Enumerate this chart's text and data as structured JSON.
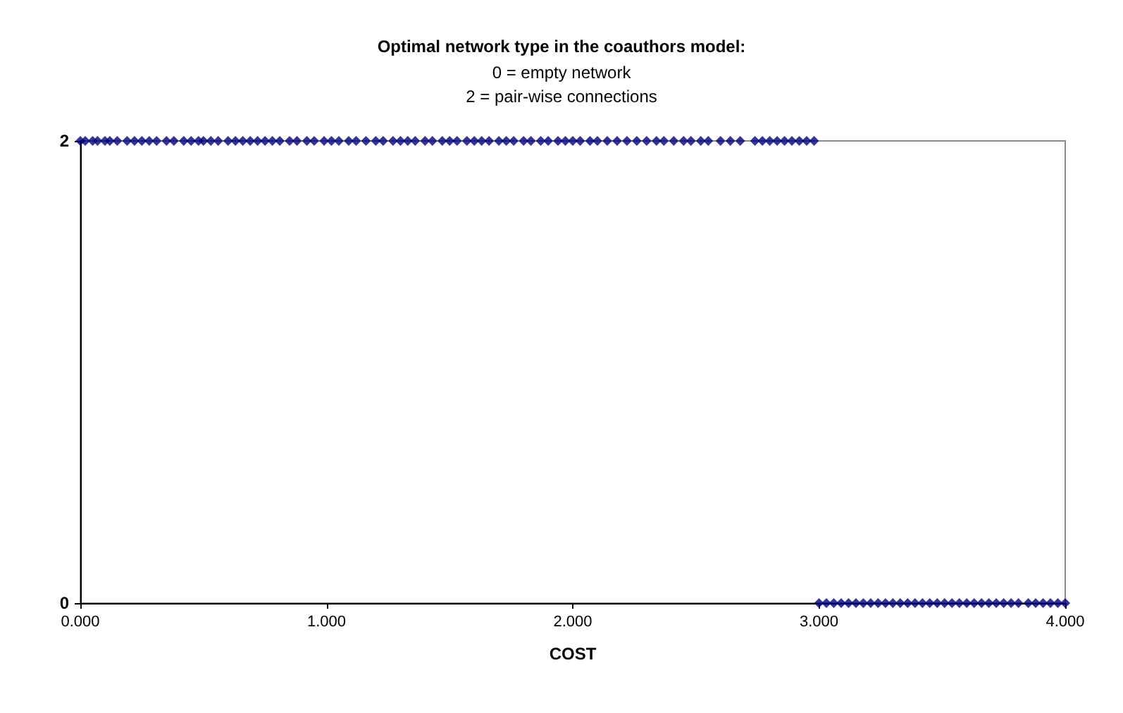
{
  "chart_data": {
    "type": "scatter",
    "title": "Optimal network type in the coauthors model:",
    "subtitle": "0 = empty network\n2 = pair-wise connections",
    "xlabel": "COST",
    "series": [
      {
        "color": "#000080",
        "x": [
          0.0,
          0.02,
          0.05,
          0.07,
          0.1,
          0.12,
          0.15,
          0.19,
          0.22,
          0.25,
          0.28,
          0.31,
          0.35,
          0.38,
          0.42,
          0.45,
          0.48,
          0.5,
          0.53,
          0.56,
          0.6,
          0.63,
          0.66,
          0.69,
          0.72,
          0.75,
          0.78,
          0.81,
          0.85,
          0.88,
          0.92,
          0.95,
          0.99,
          1.02,
          1.05,
          1.09,
          1.12,
          1.16,
          1.2,
          1.23,
          1.27,
          1.3,
          1.33,
          1.36,
          1.4,
          1.43,
          1.47,
          1.5,
          1.53,
          1.57,
          1.6,
          1.63,
          1.66,
          1.7,
          1.73,
          1.76,
          1.8,
          1.83,
          1.87,
          1.9,
          1.94,
          1.97,
          2.0,
          2.03,
          2.07,
          2.1,
          2.14,
          2.18,
          2.22,
          2.26,
          2.3,
          2.34,
          2.37,
          2.41,
          2.45,
          2.48,
          2.52,
          2.55,
          2.6,
          2.64,
          2.68,
          2.74,
          2.77,
          2.8,
          2.83,
          2.86,
          2.89,
          2.92,
          2.95,
          2.98,
          3.0,
          3.03,
          3.06,
          3.09,
          3.12,
          3.15,
          3.18,
          3.21,
          3.24,
          3.27,
          3.3,
          3.33,
          3.36,
          3.39,
          3.42,
          3.45,
          3.48,
          3.51,
          3.54,
          3.57,
          3.6,
          3.63,
          3.66,
          3.69,
          3.72,
          3.75,
          3.78,
          3.81,
          3.85,
          3.88,
          3.91,
          3.94,
          3.97,
          4.0
        ],
        "values": [
          2,
          2,
          2,
          2,
          2,
          2,
          2,
          2,
          2,
          2,
          2,
          2,
          2,
          2,
          2,
          2,
          2,
          2,
          2,
          2,
          2,
          2,
          2,
          2,
          2,
          2,
          2,
          2,
          2,
          2,
          2,
          2,
          2,
          2,
          2,
          2,
          2,
          2,
          2,
          2,
          2,
          2,
          2,
          2,
          2,
          2,
          2,
          2,
          2,
          2,
          2,
          2,
          2,
          2,
          2,
          2,
          2,
          2,
          2,
          2,
          2,
          2,
          2,
          2,
          2,
          2,
          2,
          2,
          2,
          2,
          2,
          2,
          2,
          2,
          2,
          2,
          2,
          2,
          2,
          2,
          2,
          2,
          2,
          2,
          2,
          2,
          2,
          2,
          2,
          2,
          0,
          0,
          0,
          0,
          0,
          0,
          0,
          0,
          0,
          0,
          0,
          0,
          0,
          0,
          0,
          0,
          0,
          0,
          0,
          0,
          0,
          0,
          0,
          0,
          0,
          0,
          0,
          0,
          0,
          0,
          0,
          0,
          0,
          0
        ]
      }
    ],
    "xlim": [
      0,
      4
    ],
    "xticks": [
      {
        "value": 0,
        "label": "0.000"
      },
      {
        "value": 1,
        "label": "1.000"
      },
      {
        "value": 2,
        "label": "2.000"
      },
      {
        "value": 3,
        "label": "3.000"
      },
      {
        "value": 4,
        "label": "4.000"
      }
    ],
    "ylim": [
      0,
      2
    ],
    "yticks": [
      0,
      2
    ],
    "grid": false,
    "marker": "diamond"
  }
}
